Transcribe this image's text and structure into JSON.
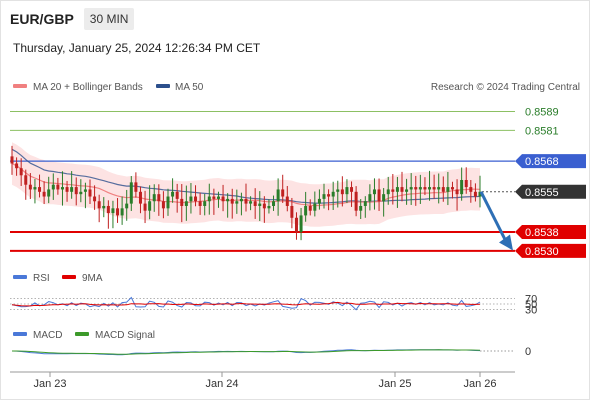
{
  "header": {
    "symbol": "EUR/GBP",
    "timeframe": "30 MIN",
    "datetime": "Thursday, January 25, 2024 12:26:34 PM CET"
  },
  "legend": {
    "ma20": "MA 20 + Bollinger Bands",
    "ma50": "MA 50",
    "credit": "Research © 2024 Trading Central",
    "rsi": "RSI",
    "rsi_ma": "9MA",
    "macd": "MACD",
    "macd_signal": "MACD Signal"
  },
  "colors": {
    "up": "#2a7d2a",
    "down": "#c02020",
    "ma20": "#f08080",
    "ma50": "#2c4f8c",
    "band": "#fde3e3",
    "green_level": "#8cc063",
    "blue_level": "#3a5fd0",
    "red_level": "#e00000",
    "current": "#333333",
    "arrow": "#2e6fb5"
  },
  "chart_data": [
    {
      "type": "candlestick",
      "title": "",
      "ylim": [
        0.8524,
        0.8596
      ],
      "x_ticks": [
        "Jan 23",
        "Jan 24",
        "Jan 25",
        "Jan 26"
      ],
      "levels": [
        {
          "value": "0.8589",
          "kind": "resistance-2"
        },
        {
          "value": "0.8581",
          "kind": "resistance-1"
        },
        {
          "value": "0.8568",
          "kind": "pivot"
        },
        {
          "value": "0.8555",
          "kind": "current"
        },
        {
          "value": "0.8538",
          "kind": "support-1"
        },
        {
          "value": "0.8530",
          "kind": "support-2"
        }
      ],
      "forecast": {
        "from": 0.8555,
        "to": 0.8531,
        "direction": "down"
      },
      "closes": [
        0.8567,
        0.8565,
        0.8562,
        0.8558,
        0.8556,
        0.8557,
        0.8555,
        0.8553,
        0.8556,
        0.8558,
        0.8556,
        0.8557,
        0.8555,
        0.8557,
        0.8554,
        0.8555,
        0.8556,
        0.8553,
        0.8551,
        0.8548,
        0.8549,
        0.8546,
        0.8548,
        0.8545,
        0.8548,
        0.855,
        0.8559,
        0.8555,
        0.855,
        0.8547,
        0.8551,
        0.8554,
        0.8551,
        0.8548,
        0.8553,
        0.8555,
        0.8552,
        0.8549,
        0.8551,
        0.8553,
        0.8551,
        0.8549,
        0.8551,
        0.8553,
        0.8552,
        0.8553,
        0.8551,
        0.8552,
        0.855,
        0.8551,
        0.8552,
        0.855,
        0.8551,
        0.8549,
        0.855,
        0.8548,
        0.8549,
        0.8551,
        0.8556,
        0.8553,
        0.8549,
        0.8544,
        0.8538,
        0.8545,
        0.8549,
        0.8547,
        0.855,
        0.8552,
        0.8554,
        0.8553,
        0.8555,
        0.8556,
        0.8554,
        0.8557,
        0.8555,
        0.8547,
        0.8549,
        0.8551,
        0.8554,
        0.8556,
        0.8551,
        0.8554,
        0.8556,
        0.8555,
        0.8557,
        0.8555,
        0.8556,
        0.8557,
        0.8556,
        0.8557,
        0.8556,
        0.8557,
        0.8556,
        0.8557,
        0.8555,
        0.8557,
        0.8556,
        0.8554,
        0.856,
        0.8557,
        0.8555,
        0.8553,
        0.8555
      ]
    },
    {
      "type": "line",
      "title": "",
      "series": [
        {
          "name": "RSI"
        },
        {
          "name": "9MA"
        }
      ],
      "y_ticks": [
        "70",
        "50",
        "30"
      ],
      "ylim": [
        0,
        100
      ]
    },
    {
      "type": "line",
      "title": "",
      "series": [
        {
          "name": "MACD"
        },
        {
          "name": "MACD Signal"
        }
      ],
      "y_ticks": [
        "0"
      ]
    }
  ]
}
